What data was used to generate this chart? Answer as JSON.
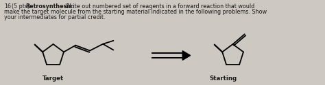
{
  "background_color": "#cdc8c2",
  "title_line1": "16  (5 pts) Retrosynthesis:  Write out numbered set of reagents in a forward reaction that would",
  "title_line2": "make the target molecule from the starting material indicated in the following problems. Show",
  "title_line3": "your intermediates for partial credit.",
  "label_target": "Target",
  "label_starting": "Starting",
  "text_color": "#1a1a1a",
  "title_fontsize": 5.8,
  "label_fontsize": 6.2,
  "bold_part": "Retrosynthesis:",
  "lw": 1.3
}
